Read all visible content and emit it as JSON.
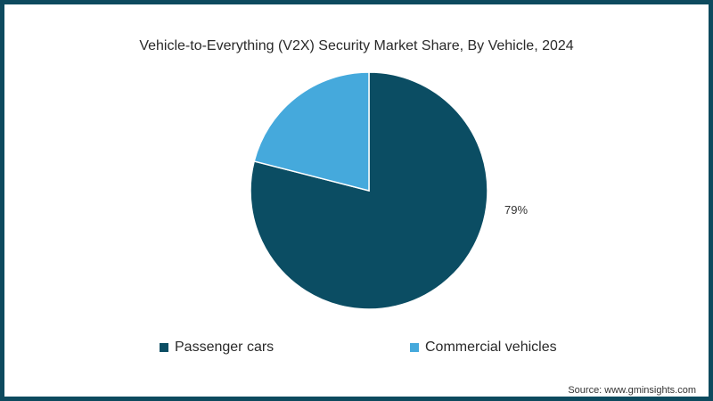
{
  "chart_data": {
    "type": "pie",
    "title": "Vehicle-to-Everything (V2X) Security Market Share, By Vehicle, 2024",
    "categories": [
      "Passenger cars",
      "Commercial vehicles"
    ],
    "values": [
      79,
      21
    ],
    "labels_shown": [
      "79%",
      ""
    ],
    "colors": [
      "#0b4d63",
      "#45a9dc"
    ],
    "start_angle": "top (12 o'clock)",
    "direction": "clockwise",
    "legend_position": "bottom"
  },
  "title": "Vehicle-to-Everything (V2X) Security Market Share, By Vehicle, 2024",
  "slice_label": "79%",
  "legend": [
    {
      "label": "Passenger cars",
      "color": "#0b4d63"
    },
    {
      "label": "Commercial vehicles",
      "color": "#45a9dc"
    }
  ],
  "source": "Source: www.gminsights.com",
  "colors": {
    "frame": "#0d4a5e",
    "background": "#ffffff"
  }
}
